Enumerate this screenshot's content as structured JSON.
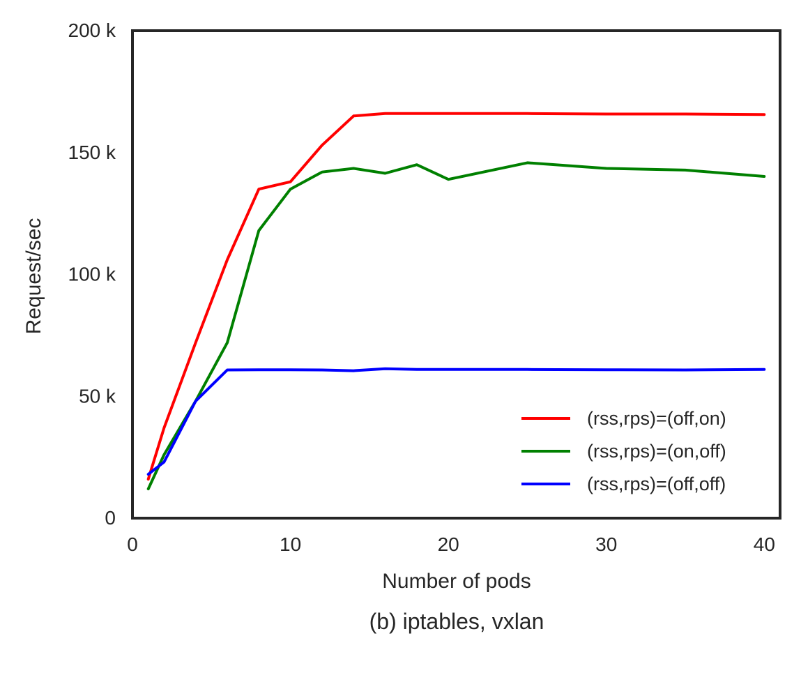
{
  "chart_data": {
    "type": "line",
    "caption": "(b) iptables, vxlan",
    "xlabel": "Number of pods",
    "ylabel": "Request/sec",
    "xlim": [
      0,
      41
    ],
    "ylim": [
      0,
      200000
    ],
    "x_ticks": [
      0,
      10,
      20,
      30,
      40
    ],
    "x_tick_labels": [
      "0",
      "10",
      "20",
      "30",
      "40"
    ],
    "y_ticks": [
      0,
      50000,
      100000,
      150000,
      200000
    ],
    "y_tick_labels": [
      "0",
      "50 k",
      "100 k",
      "150 k",
      "200 k"
    ],
    "grid": false,
    "legend_position": "lower-right",
    "series": [
      {
        "name": "(rss,rps)=(off,on)",
        "color": "#ff0000",
        "x": [
          1,
          2,
          4,
          6,
          8,
          10,
          12,
          14,
          16,
          18,
          20,
          25,
          30,
          35,
          40
        ],
        "y": [
          16000,
          37000,
          72000,
          106000,
          135000,
          138000,
          153000,
          165000,
          166000,
          166000,
          166000,
          166000,
          165800,
          165800,
          165600
        ]
      },
      {
        "name": "(rss,rps)=(on,off)",
        "color": "#008000",
        "x": [
          1,
          2,
          4,
          6,
          8,
          10,
          12,
          14,
          16,
          18,
          20,
          25,
          30,
          35,
          40
        ],
        "y": [
          12000,
          26000,
          48000,
          72000,
          118000,
          135000,
          142000,
          143500,
          141500,
          145000,
          139000,
          145800,
          143500,
          142800,
          140200
        ]
      },
      {
        "name": "(rss,rps)=(off,off)",
        "color": "#0000ff",
        "x": [
          1,
          2,
          4,
          6,
          8,
          10,
          12,
          14,
          16,
          18,
          20,
          25,
          30,
          35,
          40
        ],
        "y": [
          18000,
          23000,
          48000,
          60800,
          60900,
          60900,
          60800,
          60500,
          61300,
          61000,
          61000,
          61000,
          60900,
          60800,
          61000
        ]
      }
    ]
  }
}
